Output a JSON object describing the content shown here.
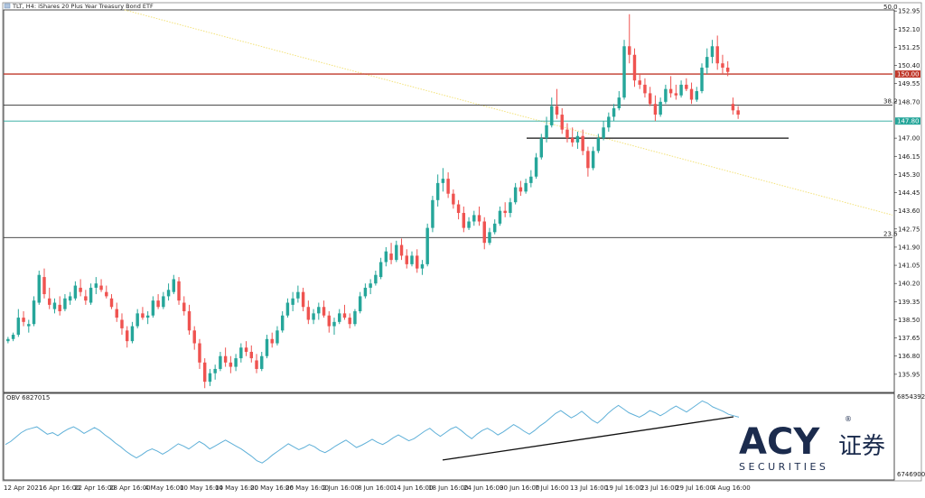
{
  "header": {
    "title": "TLT, H4: iShares 20 Plus Year Treasury Bond ETF"
  },
  "chart_data": [
    {
      "type": "candlestick",
      "title": "TLT, H4: iShares 20 Plus Year Treasury Bond ETF",
      "ylim": [
        135.1,
        153.0
      ],
      "y_ticks": [
        152.95,
        152.1,
        151.25,
        150.4,
        149.55,
        148.7,
        147.0,
        146.15,
        145.3,
        144.45,
        143.6,
        142.75,
        141.9,
        141.05,
        140.2,
        139.35,
        138.5,
        137.65,
        136.8,
        135.95
      ],
      "y_tick_labels": [
        "152.95",
        "152.10",
        "151.25",
        "150.40",
        "149.55",
        "148.70",
        "147.00",
        "146.15",
        "145.30",
        "144.45",
        "143.60",
        "142.75",
        "141.90",
        "141.05",
        "140.20",
        "139.35",
        "138.50",
        "137.65",
        "136.80",
        "135.95"
      ],
      "x_ticks": [
        "12 Apr 2021",
        "16 Apr 16:00",
        "22 Apr 16:00",
        "28 Apr 16:00",
        "4 May 16:00",
        "10 May 16:00",
        "14 May 16:00",
        "20 May 16:00",
        "26 May 16:00",
        "2 Jun 16:00",
        "8 Jun 16:00",
        "14 Jun 16:00",
        "18 Jun 16:00",
        "24 Jun 16:00",
        "30 Jun 16:00",
        "7 Jul 16:00",
        "13 Jul 16:00",
        "19 Jul 16:00",
        "23 Jul 16:00",
        "29 Jul 16:00",
        "4 Aug 16:00"
      ],
      "up_color": "#26a69a",
      "down_color": "#ef5350",
      "candles": [
        [
          137.5,
          137.7,
          137.4,
          137.6
        ],
        [
          137.6,
          137.9,
          137.5,
          137.8
        ],
        [
          137.8,
          139.0,
          137.7,
          138.6
        ],
        [
          138.6,
          138.9,
          138.2,
          138.4
        ],
        [
          138.2,
          138.5,
          137.9,
          138.3
        ],
        [
          138.3,
          139.6,
          138.2,
          139.4
        ],
        [
          139.3,
          140.8,
          139.2,
          140.6
        ],
        [
          140.5,
          140.9,
          139.5,
          139.7
        ],
        [
          139.5,
          140.0,
          139.0,
          139.2
        ],
        [
          139.0,
          139.5,
          138.8,
          139.3
        ],
        [
          139.2,
          139.6,
          138.7,
          138.9
        ],
        [
          139.0,
          139.7,
          138.9,
          139.5
        ],
        [
          139.4,
          139.8,
          139.2,
          139.6
        ],
        [
          139.5,
          140.3,
          139.4,
          140.1
        ],
        [
          140.0,
          140.4,
          139.6,
          139.8
        ],
        [
          139.6,
          139.9,
          139.2,
          139.4
        ],
        [
          139.3,
          140.2,
          139.2,
          140.0
        ],
        [
          140.0,
          140.5,
          139.7,
          140.2
        ],
        [
          140.1,
          140.4,
          139.8,
          139.9
        ],
        [
          139.8,
          140.1,
          139.5,
          139.6
        ],
        [
          139.5,
          139.7,
          139.0,
          139.1
        ],
        [
          139.0,
          139.3,
          138.4,
          138.6
        ],
        [
          138.5,
          138.8,
          137.8,
          138.1
        ],
        [
          138.0,
          138.2,
          137.2,
          137.5
        ],
        [
          137.5,
          138.4,
          137.4,
          138.2
        ],
        [
          138.2,
          139.0,
          138.1,
          138.8
        ],
        [
          138.8,
          139.1,
          138.5,
          138.6
        ],
        [
          138.6,
          138.9,
          138.3,
          138.7
        ],
        [
          138.7,
          139.6,
          138.6,
          139.4
        ],
        [
          139.4,
          139.7,
          139.0,
          139.1
        ],
        [
          139.1,
          139.8,
          139.0,
          139.6
        ],
        [
          139.6,
          140.2,
          139.4,
          139.9
        ],
        [
          139.8,
          140.6,
          139.7,
          140.4
        ],
        [
          140.3,
          140.5,
          139.2,
          139.4
        ],
        [
          139.3,
          139.6,
          138.7,
          138.9
        ],
        [
          138.9,
          139.2,
          137.8,
          138.0
        ],
        [
          138.0,
          138.2,
          137.1,
          137.4
        ],
        [
          137.4,
          137.6,
          136.2,
          136.5
        ],
        [
          136.5,
          136.7,
          135.3,
          135.6
        ],
        [
          135.6,
          136.2,
          135.4,
          136.0
        ],
        [
          136.0,
          136.4,
          135.7,
          136.2
        ],
        [
          136.2,
          137.0,
          136.1,
          136.8
        ],
        [
          136.8,
          137.2,
          136.3,
          136.5
        ],
        [
          136.5,
          136.8,
          136.0,
          136.3
        ],
        [
          136.3,
          136.9,
          136.1,
          136.7
        ],
        [
          136.7,
          137.4,
          136.5,
          137.2
        ],
        [
          137.2,
          137.5,
          136.8,
          137.0
        ],
        [
          137.0,
          137.3,
          136.5,
          136.7
        ],
        [
          136.6,
          136.9,
          136.0,
          136.2
        ],
        [
          136.2,
          137.0,
          136.1,
          136.8
        ],
        [
          136.8,
          137.8,
          136.7,
          137.6
        ],
        [
          137.6,
          137.9,
          137.2,
          137.4
        ],
        [
          137.4,
          138.2,
          137.3,
          138.0
        ],
        [
          138.0,
          138.9,
          137.9,
          138.7
        ],
        [
          138.7,
          139.5,
          138.6,
          139.3
        ],
        [
          139.2,
          139.8,
          138.9,
          139.5
        ],
        [
          139.5,
          140.1,
          139.3,
          139.8
        ],
        [
          139.8,
          140.0,
          138.9,
          139.1
        ],
        [
          139.1,
          139.4,
          138.3,
          138.5
        ],
        [
          138.5,
          139.0,
          138.3,
          138.8
        ],
        [
          138.8,
          139.3,
          138.5,
          139.1
        ],
        [
          139.1,
          139.4,
          138.6,
          138.7
        ],
        [
          138.7,
          138.9,
          137.9,
          138.2
        ],
        [
          138.2,
          138.6,
          137.8,
          138.4
        ],
        [
          138.4,
          139.0,
          138.3,
          138.8
        ],
        [
          138.8,
          139.2,
          138.5,
          138.6
        ],
        [
          138.6,
          138.8,
          138.1,
          138.3
        ],
        [
          138.3,
          139.0,
          138.2,
          138.9
        ],
        [
          138.9,
          139.8,
          138.8,
          139.6
        ],
        [
          139.6,
          140.2,
          139.5,
          140.0
        ],
        [
          140.0,
          140.4,
          139.7,
          140.2
        ],
        [
          140.2,
          140.8,
          140.1,
          140.6
        ],
        [
          140.5,
          141.4,
          140.4,
          141.2
        ],
        [
          141.2,
          141.9,
          141.0,
          141.7
        ],
        [
          141.6,
          142.1,
          141.1,
          141.3
        ],
        [
          141.3,
          142.2,
          141.2,
          142.0
        ],
        [
          142.0,
          142.3,
          141.3,
          141.5
        ],
        [
          141.5,
          141.8,
          140.9,
          141.1
        ],
        [
          141.1,
          141.7,
          141.0,
          141.5
        ],
        [
          141.5,
          141.8,
          140.7,
          140.9
        ],
        [
          140.9,
          141.3,
          140.6,
          141.1
        ],
        [
          141.1,
          143.0,
          141.0,
          142.8
        ],
        [
          142.8,
          144.3,
          142.6,
          144.1
        ],
        [
          144.1,
          145.3,
          143.8,
          144.9
        ],
        [
          144.9,
          145.6,
          144.5,
          145.1
        ],
        [
          145.1,
          145.4,
          144.2,
          144.4
        ],
        [
          144.4,
          144.6,
          143.7,
          143.9
        ],
        [
          143.9,
          144.1,
          143.2,
          143.5
        ],
        [
          143.5,
          143.8,
          142.6,
          142.8
        ],
        [
          142.8,
          143.3,
          142.7,
          143.1
        ],
        [
          143.1,
          143.6,
          142.9,
          143.4
        ],
        [
          143.4,
          143.8,
          142.9,
          143.1
        ],
        [
          143.1,
          143.3,
          141.8,
          142.1
        ],
        [
          142.1,
          142.8,
          142.0,
          142.6
        ],
        [
          142.6,
          143.2,
          142.5,
          143.0
        ],
        [
          143.0,
          143.8,
          142.9,
          143.6
        ],
        [
          143.6,
          144.0,
          143.3,
          143.5
        ],
        [
          143.5,
          144.2,
          143.3,
          144.0
        ],
        [
          144.0,
          144.9,
          143.9,
          144.7
        ],
        [
          144.7,
          145.0,
          144.3,
          144.5
        ],
        [
          144.5,
          145.1,
          144.4,
          144.9
        ],
        [
          144.9,
          145.5,
          144.7,
          145.2
        ],
        [
          145.2,
          146.3,
          145.1,
          146.1
        ],
        [
          146.1,
          147.2,
          146.0,
          147.0
        ],
        [
          147.0,
          148.0,
          146.8,
          147.6
        ],
        [
          147.6,
          148.9,
          147.5,
          148.5
        ],
        [
          148.5,
          149.3,
          147.9,
          148.1
        ],
        [
          148.1,
          148.4,
          147.2,
          147.4
        ],
        [
          147.4,
          147.7,
          146.8,
          147.0
        ],
        [
          147.0,
          147.5,
          146.6,
          146.8
        ],
        [
          146.8,
          147.3,
          146.5,
          147.1
        ],
        [
          147.1,
          147.4,
          146.2,
          146.4
        ],
        [
          146.4,
          146.6,
          145.2,
          145.6
        ],
        [
          145.6,
          146.6,
          145.5,
          146.4
        ],
        [
          146.4,
          147.2,
          146.3,
          147.0
        ],
        [
          147.0,
          147.8,
          146.9,
          147.5
        ],
        [
          147.5,
          148.2,
          147.3,
          148.0
        ],
        [
          148.0,
          148.6,
          147.8,
          148.4
        ],
        [
          148.4,
          149.2,
          148.3,
          148.9
        ],
        [
          148.9,
          151.6,
          148.8,
          151.3
        ],
        [
          151.3,
          152.8,
          150.5,
          150.9
        ],
        [
          150.9,
          151.2,
          149.4,
          149.7
        ],
        [
          149.7,
          150.0,
          149.3,
          149.5
        ],
        [
          149.5,
          149.8,
          148.9,
          149.1
        ],
        [
          149.1,
          149.4,
          148.5,
          148.6
        ],
        [
          148.6,
          149.0,
          147.8,
          148.1
        ],
        [
          148.1,
          148.9,
          148.0,
          148.7
        ],
        [
          148.7,
          149.5,
          148.6,
          149.3
        ],
        [
          149.3,
          149.9,
          148.9,
          149.1
        ],
        [
          149.1,
          149.5,
          148.8,
          149.0
        ],
        [
          149.0,
          149.7,
          148.9,
          149.5
        ],
        [
          149.5,
          149.8,
          149.2,
          149.3
        ],
        [
          149.3,
          149.6,
          148.6,
          148.8
        ],
        [
          148.8,
          149.4,
          148.7,
          149.2
        ],
        [
          149.2,
          150.5,
          149.1,
          150.3
        ],
        [
          150.3,
          151.2,
          150.0,
          150.8
        ],
        [
          150.8,
          151.6,
          150.5,
          151.3
        ],
        [
          151.3,
          151.8,
          150.2,
          150.5
        ],
        [
          150.5,
          150.9,
          150.0,
          150.3
        ],
        [
          150.3,
          150.6,
          149.9,
          150.1
        ],
        [
          148.6,
          148.9,
          148.1,
          148.3
        ],
        [
          148.3,
          148.5,
          147.9,
          148.1
        ]
      ],
      "hlines": [
        {
          "price": 150.0,
          "color": "#c0392b",
          "label": "150.00"
        },
        {
          "price": 148.55,
          "color": "#333333",
          "label": "38.2"
        },
        {
          "price": 147.8,
          "color": "#26a69a",
          "label": "147.80"
        },
        {
          "price": 142.35,
          "color": "#333333",
          "label": "23.6"
        },
        {
          "price": 152.95,
          "color": "#333333",
          "label": "50.0"
        }
      ],
      "support_line": [
        147.0,
        147.0
      ],
      "trend_line": [
        153.0,
        143.4
      ]
    },
    {
      "type": "line",
      "title": "OBV 6827015",
      "ylim": [
        6746900,
        6854392
      ],
      "y_ticks": [
        6854392,
        6746900
      ],
      "y_tick_labels": [
        "6854392",
        "6746900"
      ],
      "series": [
        {
          "name": "OBV",
          "color": "#5fb0d8",
          "values": [
            6790000,
            6794000,
            6800000,
            6806000,
            6810000,
            6812000,
            6814000,
            6809000,
            6804000,
            6806000,
            6802000,
            6807000,
            6811000,
            6814000,
            6810000,
            6805000,
            6809000,
            6813000,
            6809000,
            6803000,
            6798000,
            6792000,
            6787000,
            6781000,
            6776000,
            6772000,
            6776000,
            6781000,
            6784000,
            6781000,
            6777000,
            6781000,
            6786000,
            6791000,
            6788000,
            6784000,
            6789000,
            6794000,
            6790000,
            6784000,
            6788000,
            6792000,
            6796000,
            6792000,
            6788000,
            6784000,
            6779000,
            6774000,
            6768000,
            6765000,
            6770000,
            6776000,
            6781000,
            6786000,
            6791000,
            6787000,
            6783000,
            6786000,
            6790000,
            6787000,
            6782000,
            6779000,
            6783000,
            6788000,
            6792000,
            6796000,
            6791000,
            6786000,
            6789000,
            6793000,
            6797000,
            6793000,
            6790000,
            6794000,
            6799000,
            6803000,
            6799000,
            6795000,
            6798000,
            6803000,
            6808000,
            6812000,
            6806000,
            6801000,
            6806000,
            6811000,
            6814000,
            6809000,
            6803000,
            6798000,
            6804000,
            6809000,
            6812000,
            6808000,
            6803000,
            6807000,
            6812000,
            6817000,
            6813000,
            6808000,
            6804000,
            6809000,
            6815000,
            6820000,
            6826000,
            6832000,
            6836000,
            6831000,
            6826000,
            6830000,
            6835000,
            6829000,
            6823000,
            6819000,
            6825000,
            6832000,
            6838000,
            6843000,
            6838000,
            6833000,
            6830000,
            6827000,
            6831000,
            6836000,
            6833000,
            6829000,
            6833000,
            6838000,
            6842000,
            6838000,
            6834000,
            6839000,
            6844000,
            6849000,
            6846000,
            6841000,
            6838000,
            6835000,
            6831000,
            6829000,
            6827015
          ]
        }
      ],
      "trend_line": [
        6769000,
        6827500
      ]
    }
  ],
  "brand": {
    "logo_text": "ACY",
    "logo_registered": "®",
    "logo_cn": "证券",
    "logo_sub": "S E C U R I T I E S",
    "navy": "#1b2b4d"
  }
}
